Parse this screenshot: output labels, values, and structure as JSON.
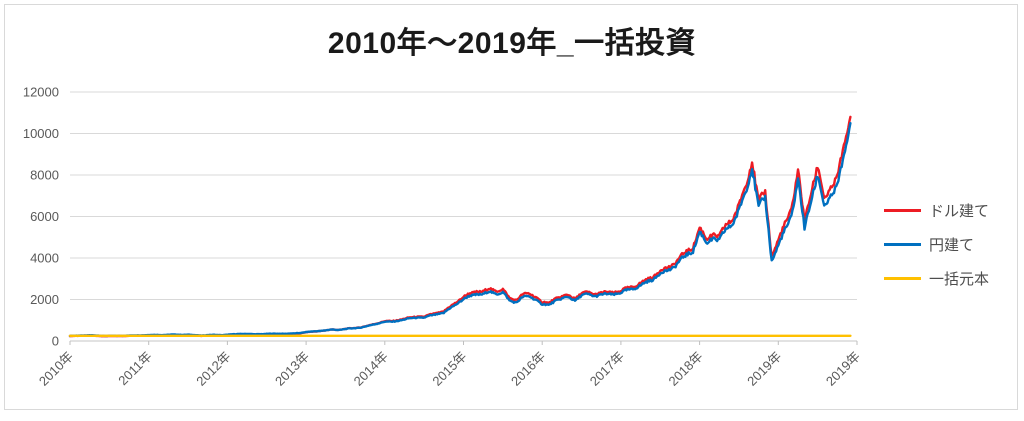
{
  "chart_data": {
    "type": "line",
    "title": "2010年〜2019年_一括投資",
    "xlabel": "",
    "ylabel": "",
    "ylim": [
      0,
      12000
    ],
    "y_ticks": [
      0,
      2000,
      4000,
      6000,
      8000,
      10000,
      12000
    ],
    "x_tick_labels": [
      "2010年",
      "2011年",
      "2012年",
      "2013年",
      "2014年",
      "2015年",
      "2016年",
      "2017年",
      "2018年",
      "2019年",
      "2019年"
    ],
    "grid": "horizontal",
    "legend_position": "right",
    "points_per_year": 12,
    "series": [
      {
        "name": "ドル建て",
        "key": "usd-line",
        "color": "#ed1c24",
        "values": [
          242,
          244,
          252,
          260,
          243,
          231,
          237,
          235,
          245,
          254,
          259,
          268,
          272,
          276,
          268,
          278,
          284,
          278,
          285,
          262,
          250,
          270,
          280,
          270,
          284,
          304,
          322,
          316,
          295,
          305,
          318,
          326,
          338,
          335,
          350,
          380,
          428,
          450,
          482,
          505,
          540,
          530,
          574,
          606,
          648,
          710,
          792,
          895,
          975,
          958,
          1020,
          1065,
          1118,
          1162,
          1145,
          1250,
          1360,
          1415,
          1680,
          1945,
          2160,
          2320,
          2430,
          2380,
          2490,
          2385,
          2440,
          2020,
          1965,
          2230,
          2285,
          2175,
          1905,
          1850,
          2105,
          2150,
          2200,
          2040,
          2245,
          2295,
          2240,
          2290,
          2340,
          2390,
          2445,
          2600,
          2705,
          2810,
          2965,
          3120,
          3330,
          3435,
          3640,
          3950,
          4260,
          4570,
          5500,
          4985,
          5295,
          5090,
          5610,
          5920,
          6440,
          7270,
          8620,
          6545,
          7060,
          4120,
          4855,
          5700,
          6540,
          8330,
          5810,
          7280,
          8330,
          6755,
          7280,
          7700,
          9280,
          10800
        ]
      },
      {
        "name": "円建て",
        "key": "jpy-line",
        "color": "#0070c0",
        "values": [
          250,
          253,
          262,
          272,
          256,
          246,
          252,
          249,
          259,
          268,
          273,
          283,
          289,
          293,
          286,
          296,
          302,
          296,
          303,
          281,
          271,
          291,
          301,
          291,
          306,
          326,
          343,
          337,
          317,
          327,
          339,
          346,
          358,
          354,
          368,
          396,
          438,
          458,
          488,
          508,
          540,
          528,
          568,
          598,
          638,
          698,
          778,
          878,
          948,
          928,
          988,
          1028,
          1078,
          1118,
          1098,
          1198,
          1298,
          1348,
          1598,
          1848,
          2048,
          2198,
          2298,
          2248,
          2348,
          2248,
          2298,
          1898,
          1848,
          2098,
          2148,
          2048,
          1798,
          1748,
          1998,
          2048,
          2098,
          1948,
          2148,
          2198,
          2148,
          2198,
          2248,
          2298,
          2348,
          2498,
          2598,
          2698,
          2848,
          2998,
          3198,
          3298,
          3498,
          3798,
          4098,
          4398,
          5298,
          4798,
          5098,
          4898,
          5398,
          5698,
          6198,
          6998,
          8298,
          6298,
          6798,
          3898,
          4598,
          5398,
          6198,
          7898,
          5498,
          6898,
          7898,
          6398,
          6898,
          7298,
          8798,
          10498
        ]
      },
      {
        "name": "一括元本",
        "key": "principal-line",
        "color": "#ffc000",
        "constant_value": 250
      }
    ]
  },
  "colors": {
    "gridline": "#d9d9d9",
    "axis_line": "#c6c6c6",
    "tick_mark": "#bfbfbf",
    "axis_text": "#595959",
    "title_text": "#1a1a1a",
    "chart_border": "#d9d9d9"
  }
}
